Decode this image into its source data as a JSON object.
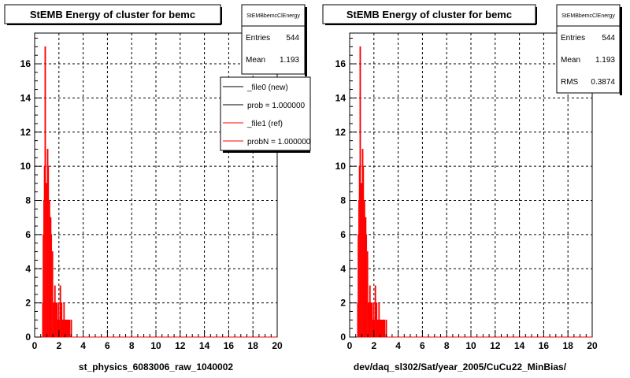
{
  "chart_data": [
    {
      "type": "histogram",
      "title": "StEMB Energy of cluster for bemc",
      "xlabel": "st_physics_6083006_raw_1040002",
      "ylabel": "",
      "xlim": [
        0,
        20
      ],
      "ylim": [
        0,
        17.8
      ],
      "x_ticks": [
        "0",
        "2",
        "4",
        "6",
        "8",
        "10",
        "12",
        "14",
        "16",
        "18",
        "20"
      ],
      "y_ticks": [
        "0",
        "2",
        "4",
        "6",
        "8",
        "10",
        "12",
        "14",
        "16"
      ],
      "grid": true,
      "stats": {
        "name": "StEMBbemcClEnergy",
        "rows": [
          {
            "label": "Entries",
            "value": "544"
          },
          {
            "label": "Mean",
            "value": "1.193"
          }
        ]
      },
      "legend": {
        "placement": "top-right",
        "entries": [
          {
            "label": "_file0 (new)",
            "color": "#000000"
          },
          {
            "label": "prob = 1.000000",
            "color": "#000000"
          },
          {
            "label": "_file1 (ref)",
            "color": "#ff0000"
          },
          {
            "label": "probN = 1.000000",
            "color": "#ff0000"
          }
        ]
      },
      "series": [
        {
          "color": "#ff0000",
          "bin_width": 0.05,
          "x": [
            0.65,
            0.7,
            0.75,
            0.8,
            0.85,
            0.9,
            0.95,
            1.0,
            1.05,
            1.1,
            1.15,
            1.2,
            1.25,
            1.3,
            1.35,
            1.4,
            1.45,
            1.5,
            1.55,
            1.6,
            1.65,
            1.7,
            1.75,
            1.8,
            1.85,
            1.9,
            1.95,
            2.0,
            2.05,
            2.1,
            2.15,
            2.2,
            2.25,
            2.3,
            2.35,
            2.4,
            2.45,
            2.5,
            2.55,
            2.6,
            2.65,
            2.7,
            2.75,
            2.8,
            2.85,
            2.9,
            2.95,
            3.0,
            3.05
          ],
          "values": [
            2,
            6,
            8,
            10,
            17,
            8,
            9,
            6,
            11,
            10,
            5,
            8,
            4,
            7,
            6,
            3,
            5,
            1,
            2,
            0,
            3,
            2,
            1,
            2,
            0,
            1,
            2,
            0,
            1,
            3,
            0,
            2,
            1,
            0,
            1,
            2,
            1,
            0,
            1,
            0,
            1,
            0,
            1,
            0,
            1,
            0,
            0,
            1,
            0
          ]
        }
      ]
    },
    {
      "type": "histogram",
      "title": "StEMB Energy of cluster for bemc",
      "xlabel": "dev/daq_sl302/Sat/year_2005/CuCu22_MinBias/",
      "ylabel": "",
      "xlim": [
        0,
        20
      ],
      "ylim": [
        0,
        17.8
      ],
      "x_ticks": [
        "0",
        "2",
        "4",
        "6",
        "8",
        "10",
        "12",
        "14",
        "16",
        "18",
        "20"
      ],
      "y_ticks": [
        "0",
        "2",
        "4",
        "6",
        "8",
        "10",
        "12",
        "14",
        "16"
      ],
      "grid": true,
      "stats": {
        "name": "StEMBbemcClEnergy",
        "rows": [
          {
            "label": "Entries",
            "value": "544"
          },
          {
            "label": "Mean",
            "value": "1.193"
          },
          {
            "label": "RMS",
            "value": "0.3874"
          }
        ]
      },
      "series": [
        {
          "color": "#ff0000",
          "bin_width": 0.05,
          "x": [
            0.65,
            0.7,
            0.75,
            0.8,
            0.85,
            0.9,
            0.95,
            1.0,
            1.05,
            1.1,
            1.15,
            1.2,
            1.25,
            1.3,
            1.35,
            1.4,
            1.45,
            1.5,
            1.55,
            1.6,
            1.65,
            1.7,
            1.75,
            1.8,
            1.85,
            1.9,
            1.95,
            2.0,
            2.05,
            2.1,
            2.15,
            2.2,
            2.25,
            2.3,
            2.35,
            2.4,
            2.45,
            2.5,
            2.55,
            2.6,
            2.65,
            2.7,
            2.75,
            2.8,
            2.85,
            2.9,
            2.95,
            3.0,
            3.05
          ],
          "values": [
            2,
            6,
            8,
            10,
            17,
            8,
            9,
            6,
            11,
            10,
            5,
            8,
            4,
            7,
            6,
            3,
            5,
            1,
            2,
            0,
            3,
            2,
            1,
            2,
            0,
            1,
            2,
            0,
            1,
            3,
            0,
            2,
            1,
            0,
            1,
            2,
            1,
            0,
            1,
            0,
            1,
            0,
            1,
            0,
            1,
            0,
            0,
            1,
            0
          ]
        }
      ]
    }
  ]
}
